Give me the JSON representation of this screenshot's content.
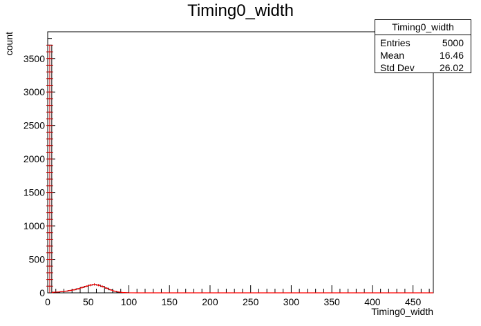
{
  "chart_data": {
    "type": "histogram",
    "title": "Timing0_width",
    "xlabel": "Timing0_width",
    "ylabel": "count",
    "xlim": [
      0,
      475
    ],
    "ylim": [
      0,
      3900
    ],
    "x_ticks": [
      0,
      50,
      100,
      150,
      200,
      250,
      300,
      350,
      400,
      450
    ],
    "y_ticks": [
      0,
      500,
      1000,
      1500,
      2000,
      2500,
      3000,
      3500
    ],
    "bin_width": 5,
    "bins": [
      {
        "x": 0,
        "value": 3700
      },
      {
        "x": 5,
        "value": 10
      },
      {
        "x": 10,
        "value": 12
      },
      {
        "x": 15,
        "value": 18
      },
      {
        "x": 20,
        "value": 25
      },
      {
        "x": 25,
        "value": 35
      },
      {
        "x": 30,
        "value": 45
      },
      {
        "x": 35,
        "value": 60
      },
      {
        "x": 40,
        "value": 80
      },
      {
        "x": 45,
        "value": 98
      },
      {
        "x": 50,
        "value": 115
      },
      {
        "x": 55,
        "value": 125
      },
      {
        "x": 60,
        "value": 115
      },
      {
        "x": 65,
        "value": 95
      },
      {
        "x": 70,
        "value": 70
      },
      {
        "x": 75,
        "value": 45
      },
      {
        "x": 80,
        "value": 25
      },
      {
        "x": 85,
        "value": 12
      },
      {
        "x": 90,
        "value": 5
      },
      {
        "x": 95,
        "value": 2
      }
    ],
    "line_color": "#000000",
    "error_bar_color": "#cc0000",
    "fit_color": "#ff0000",
    "stats_box": {
      "title": "Timing0_width",
      "rows": [
        {
          "label": "Entries",
          "value": "5000"
        },
        {
          "label": "Mean",
          "value": "16.46"
        },
        {
          "label": "Std Dev",
          "value": "26.02"
        }
      ]
    }
  }
}
